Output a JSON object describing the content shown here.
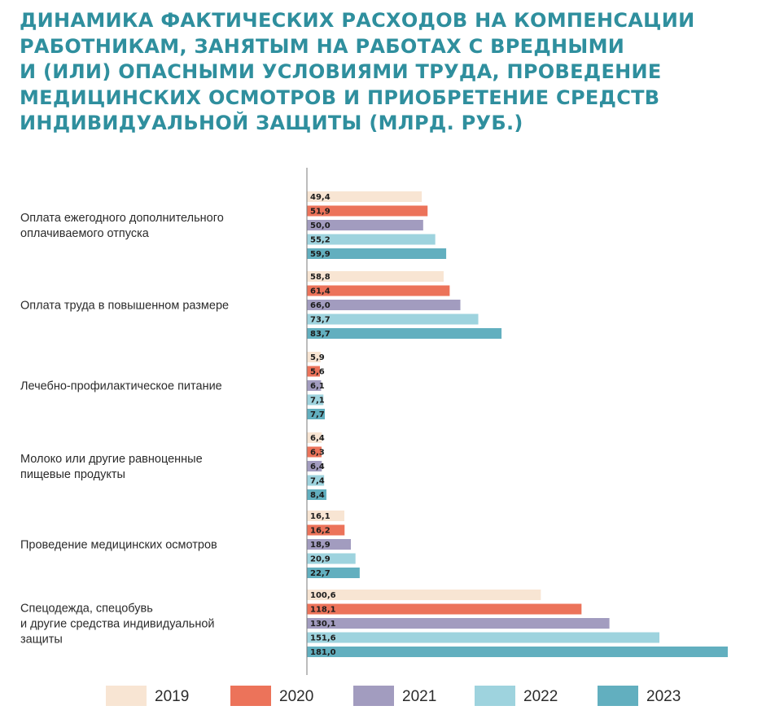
{
  "chart_data": {
    "type": "bar",
    "orientation": "horizontal",
    "title": "ДИНАМИКА ФАКТИЧЕСКИХ РАСХОДОВ НА КОМПЕНСАЦИИ РАБОТНИКАМ, ЗАНЯТЫМ НА РАБОТАХ С ВРЕДНЫМИ И (ИЛИ) ОПАСНЫМИ УСЛОВИЯМИ ТРУДА, ПРОВЕДЕНИЕ МЕДИЦИНСКИХ ОСМОТРОВ И ПРИОБРЕТЕНИЕ СРЕДСТВ ИНДИВИДУАЛЬНОЙ ЗАЩИТЫ (МЛРД. РУБ.)",
    "title_lines": [
      "ДИНАМИКА ФАКТИЧЕСКИХ РАСХОДОВ НА КОМПЕНСАЦИИ",
      "РАБОТНИКАМ, ЗАНЯТЫМ НА РАБОТАХ С ВРЕДНЫМИ",
      "И (ИЛИ) ОПАСНЫМИ УСЛОВИЯМИ ТРУДА, ПРОВЕДЕНИЕ",
      "МЕДИЦИНСКИХ ОСМОТРОВ И ПРИОБРЕТЕНИЕ СРЕДСТВ",
      "ИНДИВИДУАЛЬНОЙ ЗАЩИТЫ (МЛРД. РУБ.)"
    ],
    "categories": [
      "Оплата ежегодного дополнительного оплачиваемого отпуска",
      "Оплата труда в повышенном размере",
      "Лечебно-профилактическое питание",
      "Молоко или другие равноценные пищевые продукты",
      "Проведение медицинских осмотров",
      "Спецодежда, спецобувь и другие средства индивидуальной защиты"
    ],
    "category_label_lines": [
      [
        "Оплата ежегодного дополнительного",
        "оплачиваемого отпуска"
      ],
      [
        "Оплата труда в повышенном размере"
      ],
      [
        "Лечебно-профилактическое питание"
      ],
      [
        "Молоко или другие равноценные",
        "пищевые продукты"
      ],
      [
        "Проведение медицинских осмотров"
      ],
      [
        "Спецодежда, спецобувь",
        "и другие средства индивидуальной",
        "защиты"
      ]
    ],
    "series": [
      {
        "name": "2019",
        "color": "#f8e5d3",
        "values": [
          49.4,
          58.8,
          5.9,
          6.4,
          16.1,
          100.6
        ],
        "labels": [
          "49,4",
          "58,8",
          "5,9",
          "6,4",
          "16,1",
          "100,6"
        ]
      },
      {
        "name": "2020",
        "color": "#ec735a",
        "values": [
          51.9,
          61.4,
          5.6,
          6.3,
          16.2,
          118.1
        ],
        "labels": [
          "51,9",
          "61,4",
          "5,6",
          "6,3",
          "16,2",
          "118,1"
        ]
      },
      {
        "name": "2021",
        "color": "#a29cbf",
        "values": [
          50.0,
          66.0,
          6.1,
          6.4,
          18.9,
          130.1
        ],
        "labels": [
          "50,0",
          "66,0",
          "6,1",
          "6,4",
          "18,9",
          "130,1"
        ]
      },
      {
        "name": "2022",
        "color": "#9ed3de",
        "values": [
          55.2,
          73.7,
          7.1,
          7.4,
          20.9,
          151.6
        ],
        "labels": [
          "55,2",
          "73,7",
          "7,1",
          "7,4",
          "20,9",
          "151,6"
        ]
      },
      {
        "name": "2023",
        "color": "#62afbf",
        "values": [
          59.9,
          83.7,
          7.7,
          8.4,
          22.7,
          181.0
        ],
        "labels": [
          "59,9",
          "83,7",
          "7,7",
          "8,4",
          "22,7",
          "181,0"
        ]
      }
    ],
    "xlim": [
      0,
      181
    ],
    "grid": false,
    "legend": "bottom",
    "colors": {
      "title": "#2f8f9e",
      "axis": "#7a7a7a"
    }
  }
}
